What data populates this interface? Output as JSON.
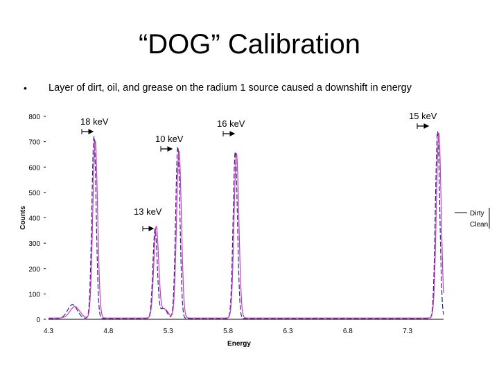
{
  "slide": {
    "title": "“DOG” Calibration",
    "bullet_marker": "•",
    "bullet_text": "Layer of dirt, oil, and grease on the radium 1 source caused a downshift in energy"
  },
  "chart_data": {
    "type": "line",
    "title": "",
    "xlabel": "Energy",
    "ylabel": "Counts",
    "xlim": [
      4.3,
      7.6
    ],
    "ylim": [
      0,
      800
    ],
    "x_ticks": [
      "4.3",
      "4.8",
      "5.3",
      "5.8",
      "6.3",
      "6.8",
      "7.3"
    ],
    "y_ticks": [
      "0",
      "100",
      "200",
      "300",
      "400",
      "500",
      "600",
      "700",
      "800"
    ],
    "legend": {
      "position": "right",
      "entries": [
        "Dirty",
        "Clean"
      ]
    },
    "series": [
      {
        "name": "Dirty",
        "color": "#2b2b7a",
        "style": "dashed",
        "peaks": [
          {
            "center": 4.68,
            "height": 720,
            "width": 0.018
          },
          {
            "center": 5.19,
            "height": 350,
            "width": 0.018
          },
          {
            "center": 5.38,
            "height": 680,
            "width": 0.018
          },
          {
            "center": 5.86,
            "height": 660,
            "width": 0.018
          },
          {
            "center": 7.55,
            "height": 740,
            "width": 0.018
          }
        ],
        "shoulders": [
          {
            "center": 4.5,
            "height": 55,
            "width": 0.04
          },
          {
            "center": 5.26,
            "height": 40,
            "width": 0.03
          }
        ],
        "baseline": 3
      },
      {
        "name": "Clean",
        "color": "#cc33cc",
        "style": "solid",
        "peaks": [
          {
            "center": 4.69,
            "height": 700,
            "width": 0.02
          },
          {
            "center": 5.2,
            "height": 360,
            "width": 0.02
          },
          {
            "center": 5.39,
            "height": 660,
            "width": 0.02
          },
          {
            "center": 5.87,
            "height": 650,
            "width": 0.02
          },
          {
            "center": 7.56,
            "height": 730,
            "width": 0.02
          }
        ],
        "shoulders": [
          {
            "center": 4.52,
            "height": 45,
            "width": 0.04
          },
          {
            "center": 5.27,
            "height": 35,
            "width": 0.03
          }
        ],
        "baseline": 5
      }
    ],
    "annotations": [
      {
        "label": "18 keV",
        "x": 4.69
      },
      {
        "label": "10 keV",
        "x": 5.39
      },
      {
        "label": "16 keV",
        "x": 5.87
      },
      {
        "label": "15 keV",
        "x": 7.56
      },
      {
        "label": "13 keV",
        "x": 5.2
      }
    ]
  }
}
